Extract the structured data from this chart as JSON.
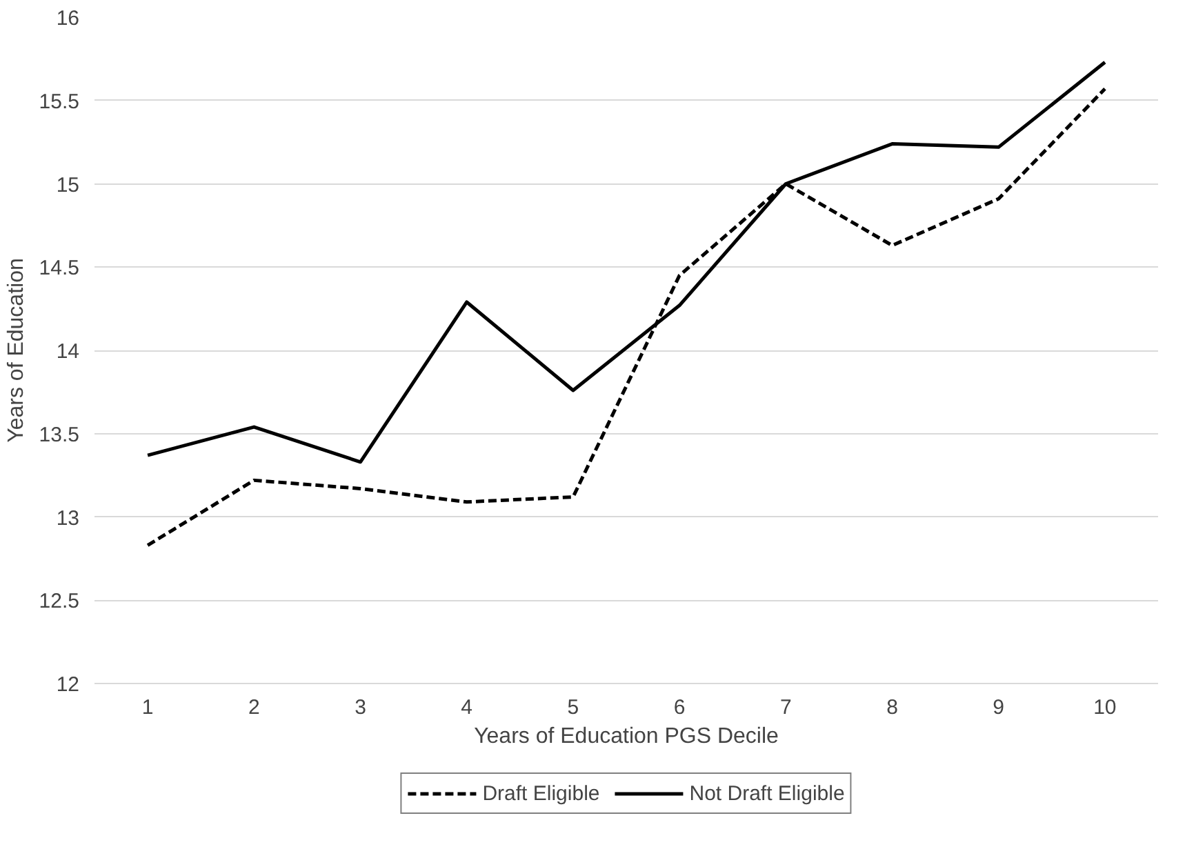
{
  "chart_data": {
    "type": "line",
    "xlabel": "Years of Education PGS Decile",
    "ylabel": "Years of Education",
    "categories": [
      "1",
      "2",
      "3",
      "4",
      "5",
      "6",
      "7",
      "8",
      "9",
      "10"
    ],
    "series": [
      {
        "name": "Draft Eligible",
        "color": "#000000",
        "line_style": "dashed",
        "values": [
          12.83,
          13.22,
          13.17,
          13.09,
          13.12,
          14.45,
          15.0,
          14.63,
          14.91,
          15.57
        ]
      },
      {
        "name": "Not Draft Eligible",
        "color": "#000000",
        "line_style": "solid",
        "values": [
          13.37,
          13.54,
          13.33,
          14.29,
          13.76,
          14.27,
          15.0,
          15.24,
          15.22,
          15.73
        ]
      }
    ],
    "ylim": [
      12,
      16
    ],
    "yticks": [
      12,
      12.5,
      13,
      13.5,
      14,
      14.5,
      15,
      15.5,
      16
    ],
    "grid": "y",
    "legend": "bottom",
    "marker": "none"
  }
}
